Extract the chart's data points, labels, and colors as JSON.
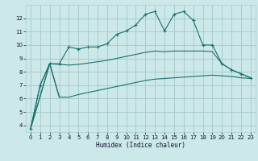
{
  "background_color": "#cce8e8",
  "grid_color": "#aacccc",
  "line_color": "#1a7070",
  "xlabel": "Humidex (Indice chaleur)",
  "xlim": [
    -0.5,
    23.5
  ],
  "ylim": [
    3.5,
    13.0
  ],
  "xticks": [
    0,
    1,
    2,
    3,
    4,
    5,
    6,
    7,
    8,
    9,
    10,
    11,
    12,
    13,
    14,
    15,
    16,
    17,
    18,
    19,
    20,
    21,
    22,
    23
  ],
  "yticks": [
    4,
    5,
    6,
    7,
    8,
    9,
    10,
    11,
    12
  ],
  "series1_x": [
    0,
    1,
    2,
    3,
    4,
    5,
    6,
    7,
    8,
    9,
    10,
    11,
    12,
    13,
    14,
    15,
    16,
    17,
    18,
    19,
    20,
    21,
    22,
    23
  ],
  "series1_y": [
    3.75,
    7.0,
    8.6,
    8.6,
    9.85,
    9.7,
    9.85,
    9.85,
    10.1,
    10.8,
    11.05,
    11.5,
    12.3,
    12.5,
    11.05,
    12.3,
    12.5,
    11.85,
    10.0,
    10.0,
    8.6,
    8.15,
    7.85,
    7.55
  ],
  "series2_x": [
    0,
    2,
    3,
    4,
    5,
    6,
    7,
    8,
    9,
    10,
    11,
    12,
    13,
    14,
    15,
    16,
    17,
    18,
    19,
    20,
    21,
    22,
    23
  ],
  "series2_y": [
    3.75,
    8.6,
    8.55,
    8.5,
    8.55,
    8.65,
    8.75,
    8.85,
    9.0,
    9.15,
    9.3,
    9.45,
    9.55,
    9.5,
    9.55,
    9.55,
    9.55,
    9.55,
    9.5,
    8.6,
    8.15,
    7.85,
    7.55
  ],
  "series3_x": [
    0,
    2,
    3,
    4,
    5,
    6,
    7,
    8,
    9,
    10,
    11,
    12,
    13,
    14,
    15,
    16,
    17,
    18,
    19,
    20,
    21,
    22,
    23
  ],
  "series3_y": [
    3.75,
    8.6,
    6.1,
    6.1,
    6.3,
    6.45,
    6.6,
    6.75,
    6.9,
    7.05,
    7.2,
    7.35,
    7.45,
    7.5,
    7.55,
    7.6,
    7.65,
    7.7,
    7.75,
    7.7,
    7.65,
    7.55,
    7.5
  ],
  "series4_x": [
    0,
    1,
    2,
    3
  ],
  "series4_y": [
    3.75,
    7.0,
    8.6,
    6.1
  ]
}
